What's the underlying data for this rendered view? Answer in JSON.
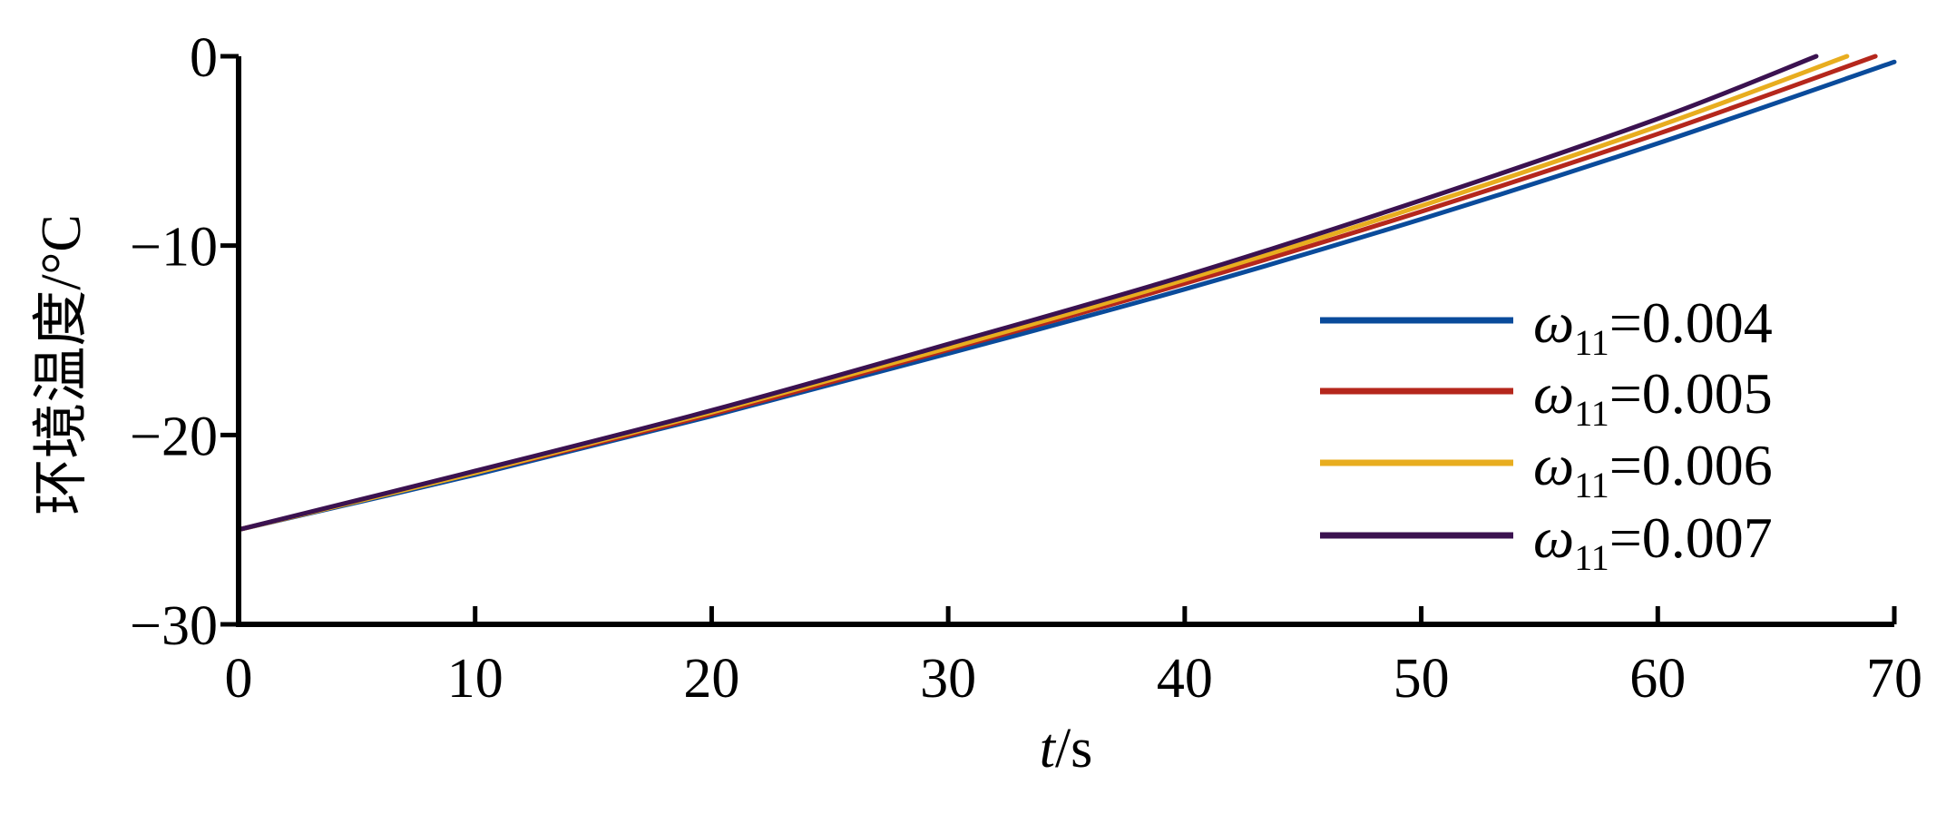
{
  "chart_data": {
    "type": "line",
    "title": "",
    "xlabel": {
      "var": "t",
      "unit": "/s"
    },
    "ylabel": "环境温度/°C",
    "xlim": [
      0,
      70
    ],
    "ylim": [
      -30,
      0
    ],
    "xticks": [
      "0",
      "10",
      "20",
      "30",
      "40",
      "50",
      "60",
      "70"
    ],
    "yticks": [
      "0",
      "−10",
      "−20",
      "−30"
    ],
    "grid": false,
    "legend_position": "right",
    "series": [
      {
        "name": "ω11=0.004",
        "symbol": "ω",
        "subscript": "11",
        "value": "=0.004",
        "color": "#0a4b9b",
        "x": [
          0,
          10,
          20,
          30,
          40,
          50,
          60,
          70
        ],
        "y": [
          -25.0,
          -22.1,
          -19.0,
          -15.7,
          -12.3,
          -8.6,
          -4.6,
          -0.3
        ]
      },
      {
        "name": "ω11=0.005",
        "symbol": "ω",
        "subscript": "11",
        "value": "=0.005",
        "color": "#b5271c",
        "x": [
          0,
          10,
          20,
          30,
          40,
          50,
          60,
          69.2
        ],
        "y": [
          -25.0,
          -22.0,
          -18.9,
          -15.5,
          -12.0,
          -8.2,
          -4.1,
          0.0
        ]
      },
      {
        "name": "ω11=0.006",
        "symbol": "ω",
        "subscript": "11",
        "value": "=0.006",
        "color": "#e8ad1f",
        "x": [
          0,
          10,
          20,
          30,
          40,
          50,
          60,
          68.0
        ],
        "y": [
          -25.0,
          -22.0,
          -18.8,
          -15.4,
          -11.8,
          -7.9,
          -3.7,
          0.0
        ]
      },
      {
        "name": "ω11=0.007",
        "symbol": "ω",
        "subscript": "11",
        "value": "=0.007",
        "color": "#3b1250",
        "x": [
          0,
          10,
          20,
          30,
          40,
          50,
          60,
          66.7
        ],
        "y": [
          -25.0,
          -21.9,
          -18.7,
          -15.2,
          -11.6,
          -7.6,
          -3.3,
          0.0
        ]
      }
    ]
  }
}
